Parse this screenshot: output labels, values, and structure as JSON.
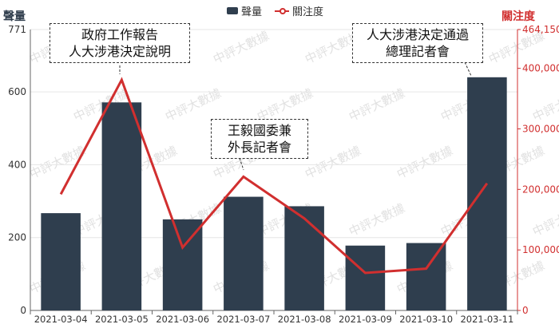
{
  "legend": {
    "bar_label": "聲量",
    "line_label": "關注度"
  },
  "axes": {
    "left_title": "聲量",
    "right_title": "關注度"
  },
  "watermark": "中評大數據",
  "colors": {
    "bar": "#2f3e4e",
    "line": "#d12f2f",
    "grid": "#e6e6e6",
    "axis": "#666666"
  },
  "callouts": [
    {
      "lines": [
        "政府工作報告",
        "人大涉港決定說明"
      ],
      "category": "2021-03-05"
    },
    {
      "lines": [
        "王毅國委兼",
        "外長記者會"
      ],
      "category": "2021-03-07"
    },
    {
      "lines": [
        "人大涉港決定通過",
        "總理記者會"
      ],
      "category": "2021-03-11"
    }
  ],
  "chart_data": {
    "type": "bar",
    "categories": [
      "2021-03-04",
      "2021-03-05",
      "2021-03-06",
      "2021-03-07",
      "2021-03-08",
      "2021-03-09",
      "2021-03-10",
      "2021-03-11"
    ],
    "series": [
      {
        "name": "聲量",
        "type": "bar",
        "axis": "left",
        "values": [
          267,
          571,
          250,
          312,
          286,
          178,
          185,
          640
        ]
      },
      {
        "name": "關注度",
        "type": "line",
        "axis": "right",
        "values": [
          192000,
          381000,
          104000,
          221000,
          152000,
          62000,
          69000,
          210000
        ]
      }
    ],
    "left_axis": {
      "title": "聲量",
      "ylim": [
        0,
        771
      ],
      "ticks": [
        0,
        200,
        400,
        600,
        771
      ],
      "tick_labels": [
        "0",
        "200",
        "400",
        "600",
        "771"
      ]
    },
    "right_axis": {
      "title": "關注度",
      "ylim": [
        0,
        464150
      ],
      "ticks": [
        0,
        100000,
        200000,
        300000,
        400000,
        464150
      ],
      "tick_labels": [
        "0",
        "100,000",
        "200,000",
        "300,000",
        "400,000",
        "464,150"
      ]
    },
    "legend_position": "top-center",
    "grid": true
  }
}
